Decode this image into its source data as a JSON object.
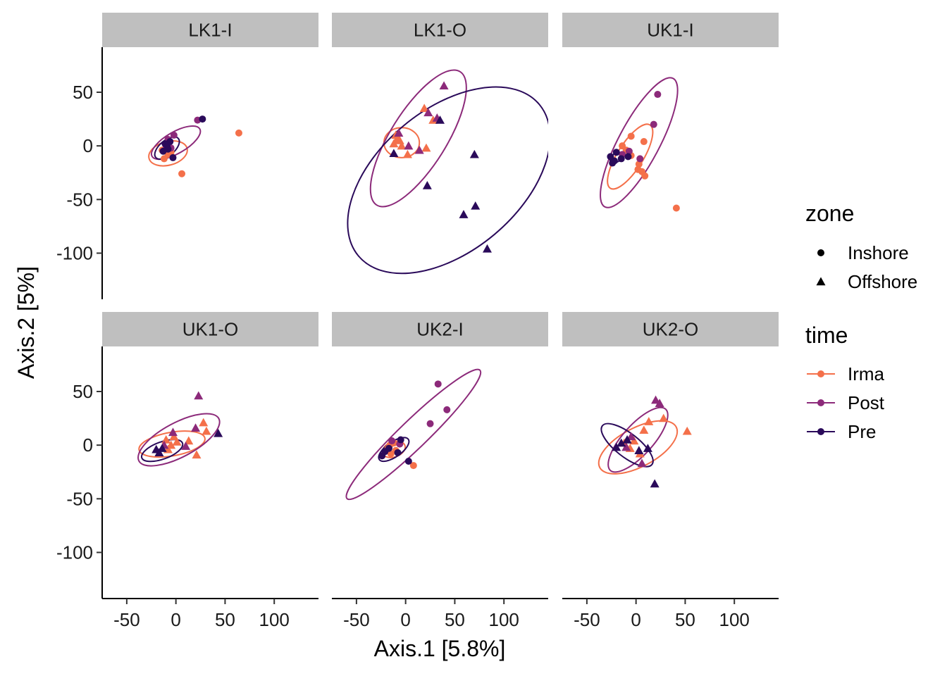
{
  "chart_data": {
    "type": "scatter",
    "xlabel": "Axis.1   [5.8%]",
    "ylabel": "Axis.2   [5%]",
    "xlim": [
      -75,
      145
    ],
    "ylim": [
      -143,
      92
    ],
    "x_ticks": [
      -50,
      0,
      50,
      100
    ],
    "y_ticks": [
      50,
      0,
      -50,
      -100
    ],
    "x_tick_labels": [
      "-50",
      "0",
      "50",
      "100"
    ],
    "y_tick_labels": [
      "50",
      "0",
      "-50",
      "-100"
    ],
    "grid": false,
    "legend_position": "right",
    "colors": {
      "Irma": "#f4704a",
      "Post": "#8c2a7a",
      "Pre": "#2a0a5a"
    },
    "legend": {
      "zone": {
        "title": "zone",
        "items": [
          "Inshore",
          "Offshore"
        ]
      },
      "time": {
        "title": "time",
        "items": [
          "Irma",
          "Post",
          "Pre"
        ]
      }
    },
    "panels": [
      {
        "title": "LK1-I",
        "points": [
          {
            "x": 64,
            "y": 12,
            "time": "Irma",
            "zone": "Inshore"
          },
          {
            "x": 6,
            "y": -26,
            "time": "Irma",
            "zone": "Inshore"
          },
          {
            "x": -12,
            "y": -12,
            "time": "Irma",
            "zone": "Inshore"
          },
          {
            "x": -8,
            "y": -8,
            "time": "Irma",
            "zone": "Inshore"
          },
          {
            "x": -14,
            "y": -4,
            "time": "Irma",
            "zone": "Inshore"
          },
          {
            "x": -5,
            "y": -6,
            "time": "Irma",
            "zone": "Inshore"
          },
          {
            "x": 22,
            "y": 24,
            "time": "Post",
            "zone": "Inshore"
          },
          {
            "x": -2,
            "y": 10,
            "time": "Post",
            "zone": "Inshore"
          },
          {
            "x": -8,
            "y": 6,
            "time": "Post",
            "zone": "Inshore"
          },
          {
            "x": -5,
            "y": -2,
            "time": "Post",
            "zone": "Inshore"
          },
          {
            "x": -10,
            "y": 0,
            "time": "Post",
            "zone": "Inshore"
          },
          {
            "x": 27,
            "y": 25,
            "time": "Pre",
            "zone": "Inshore"
          },
          {
            "x": -3,
            "y": -11,
            "time": "Pre",
            "zone": "Inshore"
          },
          {
            "x": -9,
            "y": 0,
            "time": "Pre",
            "zone": "Inshore"
          },
          {
            "x": -13,
            "y": -5,
            "time": "Pre",
            "zone": "Inshore"
          },
          {
            "x": -6,
            "y": 4,
            "time": "Pre",
            "zone": "Inshore"
          },
          {
            "x": -11,
            "y": 2,
            "time": "Pre",
            "zone": "Inshore"
          },
          {
            "x": -8,
            "y": -3,
            "time": "Pre",
            "zone": "Inshore"
          }
        ],
        "ellipses": [
          {
            "time": "Irma",
            "cx": -8,
            "cy": -7,
            "rx": 20,
            "ry": 11,
            "angle": 15
          },
          {
            "time": "Post",
            "cx": 0,
            "cy": 3,
            "rx": 28,
            "ry": 10,
            "angle": 30
          },
          {
            "time": "Pre",
            "cx": -9,
            "cy": -2,
            "rx": 15,
            "ry": 7,
            "angle": 40
          }
        ]
      },
      {
        "title": "LK1-O",
        "points": [
          {
            "x": -10,
            "y": 10,
            "time": "Irma",
            "zone": "Offshore"
          },
          {
            "x": -6,
            "y": 5,
            "time": "Irma",
            "zone": "Offshore"
          },
          {
            "x": -12,
            "y": 2,
            "time": "Irma",
            "zone": "Offshore"
          },
          {
            "x": -4,
            "y": 0,
            "time": "Irma",
            "zone": "Offshore"
          },
          {
            "x": -9,
            "y": 6,
            "time": "Irma",
            "zone": "Offshore"
          },
          {
            "x": 2,
            "y": -8,
            "time": "Irma",
            "zone": "Offshore"
          },
          {
            "x": 19,
            "y": 35,
            "time": "Irma",
            "zone": "Offshore"
          },
          {
            "x": 21,
            "y": -2,
            "time": "Irma",
            "zone": "Offshore"
          },
          {
            "x": 28,
            "y": 24,
            "time": "Irma",
            "zone": "Offshore"
          },
          {
            "x": 39,
            "y": 56,
            "time": "Post",
            "zone": "Offshore"
          },
          {
            "x": 23,
            "y": 31,
            "time": "Post",
            "zone": "Offshore"
          },
          {
            "x": 32,
            "y": 26,
            "time": "Post",
            "zone": "Offshore"
          },
          {
            "x": -7,
            "y": 12,
            "time": "Post",
            "zone": "Offshore"
          },
          {
            "x": 14,
            "y": -4,
            "time": "Post",
            "zone": "Offshore"
          },
          {
            "x": 3,
            "y": 0,
            "time": "Post",
            "zone": "Offshore"
          },
          {
            "x": 70,
            "y": -8,
            "time": "Pre",
            "zone": "Offshore"
          },
          {
            "x": 22,
            "y": -37,
            "time": "Pre",
            "zone": "Offshore"
          },
          {
            "x": 59,
            "y": -64,
            "time": "Pre",
            "zone": "Offshore"
          },
          {
            "x": 71,
            "y": -56,
            "time": "Pre",
            "zone": "Offshore"
          },
          {
            "x": 83,
            "y": -96,
            "time": "Pre",
            "zone": "Offshore"
          },
          {
            "x": -12,
            "y": -7,
            "time": "Pre",
            "zone": "Offshore"
          },
          {
            "x": 35,
            "y": 24,
            "time": "Pre",
            "zone": "Offshore"
          }
        ],
        "ellipses": [
          {
            "time": "Irma",
            "cx": -4,
            "cy": 3,
            "rx": 18,
            "ry": 14,
            "angle": 0
          },
          {
            "time": "Post",
            "cx": 13,
            "cy": 7,
            "rx": 80,
            "ry": 26,
            "angle": 58
          },
          {
            "time": "Pre",
            "cx": 44,
            "cy": -32,
            "rx": 120,
            "ry": 66,
            "angle": 40
          }
        ]
      },
      {
        "title": "UK1-I",
        "points": [
          {
            "x": 41,
            "y": -58,
            "time": "Irma",
            "zone": "Inshore"
          },
          {
            "x": -5,
            "y": 9,
            "time": "Irma",
            "zone": "Inshore"
          },
          {
            "x": 8,
            "y": 4,
            "time": "Irma",
            "zone": "Inshore"
          },
          {
            "x": -10,
            "y": -4,
            "time": "Irma",
            "zone": "Inshore"
          },
          {
            "x": -14,
            "y": 0,
            "time": "Irma",
            "zone": "Inshore"
          },
          {
            "x": 3,
            "y": -17,
            "time": "Irma",
            "zone": "Inshore"
          },
          {
            "x": 2,
            "y": -22,
            "time": "Irma",
            "zone": "Inshore"
          },
          {
            "x": 6,
            "y": -24,
            "time": "Irma",
            "zone": "Inshore"
          },
          {
            "x": 9,
            "y": -28,
            "time": "Irma",
            "zone": "Inshore"
          },
          {
            "x": -5,
            "y": -9,
            "time": "Irma",
            "zone": "Inshore"
          },
          {
            "x": 22,
            "y": 48,
            "time": "Post",
            "zone": "Inshore"
          },
          {
            "x": 18,
            "y": 20,
            "time": "Post",
            "zone": "Inshore"
          },
          {
            "x": 4,
            "y": -12,
            "time": "Post",
            "zone": "Inshore"
          },
          {
            "x": -14,
            "y": -8,
            "time": "Post",
            "zone": "Inshore"
          },
          {
            "x": -7,
            "y": -5,
            "time": "Post",
            "zone": "Inshore"
          },
          {
            "x": -8,
            "y": -10,
            "time": "Pre",
            "zone": "Inshore"
          },
          {
            "x": -22,
            "y": -14,
            "time": "Pre",
            "zone": "Inshore"
          },
          {
            "x": -26,
            "y": -10,
            "time": "Pre",
            "zone": "Inshore"
          },
          {
            "x": -15,
            "y": -12,
            "time": "Pre",
            "zone": "Inshore"
          },
          {
            "x": -20,
            "y": -6,
            "time": "Pre",
            "zone": "Inshore"
          },
          {
            "x": -24,
            "y": -16,
            "time": "Pre",
            "zone": "Inshore"
          }
        ],
        "ellipses": [
          {
            "time": "Irma",
            "cx": -6,
            "cy": -10,
            "rx": 38,
            "ry": 12,
            "angle": 58
          },
          {
            "time": "Post",
            "cx": 3,
            "cy": 3,
            "rx": 74,
            "ry": 19,
            "angle": 62
          },
          {
            "time": "Pre",
            "cx": -20,
            "cy": -11,
            "rx": 7,
            "ry": 4,
            "angle": 30
          }
        ]
      },
      {
        "title": "UK1-O",
        "points": [
          {
            "x": -10,
            "y": 5,
            "time": "Irma",
            "zone": "Offshore"
          },
          {
            "x": -5,
            "y": 0,
            "time": "Irma",
            "zone": "Offshore"
          },
          {
            "x": 1,
            "y": 3,
            "time": "Irma",
            "zone": "Offshore"
          },
          {
            "x": -2,
            "y": 8,
            "time": "Irma",
            "zone": "Offshore"
          },
          {
            "x": 28,
            "y": 21,
            "time": "Irma",
            "zone": "Offshore"
          },
          {
            "x": 31,
            "y": 13,
            "time": "Irma",
            "zone": "Offshore"
          },
          {
            "x": 21,
            "y": -9,
            "time": "Irma",
            "zone": "Offshore"
          },
          {
            "x": 13,
            "y": 4,
            "time": "Irma",
            "zone": "Offshore"
          },
          {
            "x": -8,
            "y": -4,
            "time": "Irma",
            "zone": "Offshore"
          },
          {
            "x": 23,
            "y": 46,
            "time": "Post",
            "zone": "Offshore"
          },
          {
            "x": 20,
            "y": 16,
            "time": "Post",
            "zone": "Offshore"
          },
          {
            "x": 10,
            "y": -1,
            "time": "Post",
            "zone": "Offshore"
          },
          {
            "x": -3,
            "y": 12,
            "time": "Post",
            "zone": "Offshore"
          },
          {
            "x": -12,
            "y": 0,
            "time": "Post",
            "zone": "Offshore"
          },
          {
            "x": 43,
            "y": 11,
            "time": "Pre",
            "zone": "Offshore"
          },
          {
            "x": -17,
            "y": -7,
            "time": "Pre",
            "zone": "Offshore"
          },
          {
            "x": -20,
            "y": -4,
            "time": "Pre",
            "zone": "Offshore"
          },
          {
            "x": -14,
            "y": -3,
            "time": "Pre",
            "zone": "Offshore"
          }
        ],
        "ellipses": [
          {
            "time": "Irma",
            "cx": -4,
            "cy": 1,
            "rx": 34,
            "ry": 11,
            "angle": 10
          },
          {
            "time": "Post",
            "cx": 3,
            "cy": 5,
            "rx": 46,
            "ry": 16,
            "angle": 28
          },
          {
            "time": "Pre",
            "cx": -14,
            "cy": -5,
            "rx": 22,
            "ry": 8,
            "angle": 20
          }
        ]
      },
      {
        "title": "UK2-I",
        "points": [
          {
            "x": 8,
            "y": -19,
            "time": "Irma",
            "zone": "Inshore"
          },
          {
            "x": -18,
            "y": -3,
            "time": "Irma",
            "zone": "Inshore"
          },
          {
            "x": -15,
            "y": -8,
            "time": "Irma",
            "zone": "Inshore"
          },
          {
            "x": -12,
            "y": 2,
            "time": "Irma",
            "zone": "Inshore"
          },
          {
            "x": -10,
            "y": -5,
            "time": "Irma",
            "zone": "Inshore"
          },
          {
            "x": -16,
            "y": 0,
            "time": "Irma",
            "zone": "Inshore"
          },
          {
            "x": 33,
            "y": 57,
            "time": "Post",
            "zone": "Inshore"
          },
          {
            "x": 42,
            "y": 33,
            "time": "Post",
            "zone": "Inshore"
          },
          {
            "x": 25,
            "y": 20,
            "time": "Post",
            "zone": "Inshore"
          },
          {
            "x": -6,
            "y": 1,
            "time": "Post",
            "zone": "Inshore"
          },
          {
            "x": -14,
            "y": 4,
            "time": "Post",
            "zone": "Inshore"
          },
          {
            "x": 3,
            "y": -15,
            "time": "Pre",
            "zone": "Inshore"
          },
          {
            "x": -21,
            "y": -6,
            "time": "Pre",
            "zone": "Inshore"
          },
          {
            "x": -24,
            "y": -10,
            "time": "Pre",
            "zone": "Inshore"
          },
          {
            "x": -8,
            "y": -7,
            "time": "Pre",
            "zone": "Inshore"
          },
          {
            "x": -17,
            "y": -3,
            "time": "Pre",
            "zone": "Inshore"
          },
          {
            "x": -5,
            "y": 5,
            "time": "Pre",
            "zone": "Inshore"
          }
        ],
        "ellipses": [
          {
            "time": "Irma",
            "cx": -12,
            "cy": -4,
            "rx": 12,
            "ry": 7,
            "angle": 20
          },
          {
            "time": "Post",
            "cx": 8,
            "cy": 10,
            "rx": 94,
            "ry": 13,
            "angle": 44
          },
          {
            "time": "Pre",
            "cx": -12,
            "cy": -4,
            "rx": 18,
            "ry": 7,
            "angle": 35
          }
        ]
      },
      {
        "title": "UK2-O",
        "points": [
          {
            "x": 52,
            "y": 13,
            "time": "Irma",
            "zone": "Offshore"
          },
          {
            "x": 28,
            "y": 25,
            "time": "Irma",
            "zone": "Offshore"
          },
          {
            "x": 13,
            "y": 22,
            "time": "Irma",
            "zone": "Offshore"
          },
          {
            "x": 8,
            "y": 14,
            "time": "Irma",
            "zone": "Offshore"
          },
          {
            "x": -2,
            "y": 4,
            "time": "Irma",
            "zone": "Offshore"
          },
          {
            "x": -6,
            "y": -3,
            "time": "Irma",
            "zone": "Offshore"
          },
          {
            "x": 4,
            "y": -8,
            "time": "Irma",
            "zone": "Offshore"
          },
          {
            "x": -12,
            "y": 2,
            "time": "Irma",
            "zone": "Offshore"
          },
          {
            "x": 20,
            "y": 42,
            "time": "Post",
            "zone": "Offshore"
          },
          {
            "x": 24,
            "y": 39,
            "time": "Post",
            "zone": "Offshore"
          },
          {
            "x": -5,
            "y": 8,
            "time": "Post",
            "zone": "Offshore"
          },
          {
            "x": -10,
            "y": -2,
            "time": "Post",
            "zone": "Offshore"
          },
          {
            "x": 6,
            "y": -17,
            "time": "Post",
            "zone": "Offshore"
          },
          {
            "x": 19,
            "y": -36,
            "time": "Pre",
            "zone": "Offshore"
          },
          {
            "x": 12,
            "y": -3,
            "time": "Pre",
            "zone": "Offshore"
          },
          {
            "x": -15,
            "y": 2,
            "time": "Pre",
            "zone": "Offshore"
          },
          {
            "x": -20,
            "y": -2,
            "time": "Pre",
            "zone": "Offshore"
          },
          {
            "x": -9,
            "y": 5,
            "time": "Pre",
            "zone": "Offshore"
          },
          {
            "x": 3,
            "y": -5,
            "time": "Pre",
            "zone": "Offshore"
          }
        ],
        "ellipses": [
          {
            "time": "Irma",
            "cx": 2,
            "cy": -2,
            "rx": 44,
            "ry": 18,
            "angle": 28
          },
          {
            "time": "Post",
            "cx": 2,
            "cy": 5,
            "rx": 42,
            "ry": 14,
            "angle": 48
          },
          {
            "time": "Pre",
            "cx": -9,
            "cy": 0,
            "rx": 32,
            "ry": 11,
            "angle": -38
          }
        ]
      }
    ]
  }
}
